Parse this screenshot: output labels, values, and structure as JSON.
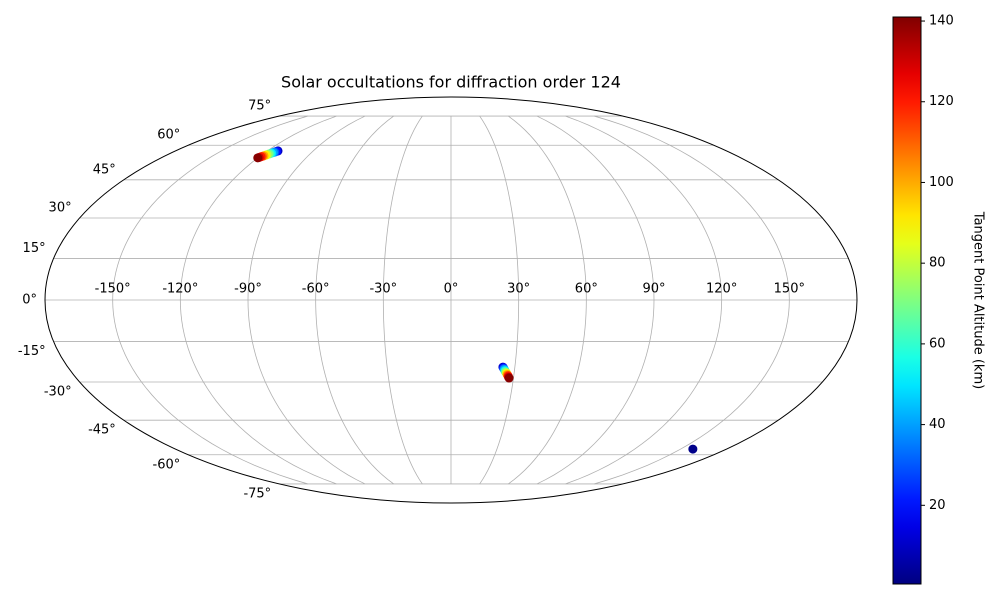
{
  "chart_data": {
    "type": "scatter",
    "projection": "mollweide",
    "title": "Solar occultations for diffraction order 124",
    "x": [
      -113.0,
      -113.5,
      -114.1,
      -114.6,
      -115.2,
      -115.7,
      -116.2,
      -116.8,
      -117.3,
      -117.8,
      -118.4,
      -118.9,
      -119.5,
      -120.0,
      24.4,
      24.7,
      24.9,
      25.2,
      25.5,
      25.7,
      26.0,
      26.3,
      26.6,
      26.8,
      27.1,
      27.4,
      27.6,
      27.9,
      158.0
    ],
    "y": [
      57.4,
      57.2,
      56.9,
      56.7,
      56.4,
      56.2,
      56.0,
      55.7,
      55.5,
      55.2,
      55.0,
      54.8,
      54.5,
      54.3,
      -24.4,
      -24.7,
      -25.0,
      -25.3,
      -25.7,
      -26.0,
      -26.3,
      -26.6,
      -26.9,
      -27.2,
      -27.5,
      -27.8,
      -28.2,
      -28.5,
      -57.4
    ],
    "values": [
      10,
      20,
      30,
      40,
      50,
      60,
      70,
      80,
      90,
      100,
      110,
      120,
      130,
      140,
      10,
      20,
      30,
      40,
      50,
      60,
      70,
      80,
      90,
      100,
      110,
      120,
      130,
      140,
      2
    ],
    "colormap": "jet",
    "clim": [
      0.5,
      141
    ],
    "colorbar_label": "Tangent Point Altitude (km)",
    "colorbar_ticks": [
      20,
      40,
      60,
      80,
      100,
      120,
      140
    ],
    "grid": true,
    "xticks": [
      {
        "value": -150,
        "label": "-150°"
      },
      {
        "value": -120,
        "label": "-120°"
      },
      {
        "value": -90,
        "label": "-90°"
      },
      {
        "value": -60,
        "label": "-60°"
      },
      {
        "value": -30,
        "label": "-30°"
      },
      {
        "value": 0,
        "label": "0°"
      },
      {
        "value": 30,
        "label": "30°"
      },
      {
        "value": 60,
        "label": "60°"
      },
      {
        "value": 90,
        "label": "90°"
      },
      {
        "value": 120,
        "label": "120°"
      },
      {
        "value": 150,
        "label": "150°"
      }
    ],
    "yticks": [
      {
        "value": -75,
        "label": "-75°"
      },
      {
        "value": -60,
        "label": "-60°"
      },
      {
        "value": -45,
        "label": "-45°"
      },
      {
        "value": -30,
        "label": "-30°"
      },
      {
        "value": -15,
        "label": "-15°"
      },
      {
        "value": 0,
        "label": "0°"
      },
      {
        "value": 15,
        "label": "15°"
      },
      {
        "value": 30,
        "label": "30°"
      },
      {
        "value": 45,
        "label": "45°"
      },
      {
        "value": 60,
        "label": "60°"
      },
      {
        "value": 75,
        "label": "75°"
      }
    ]
  }
}
